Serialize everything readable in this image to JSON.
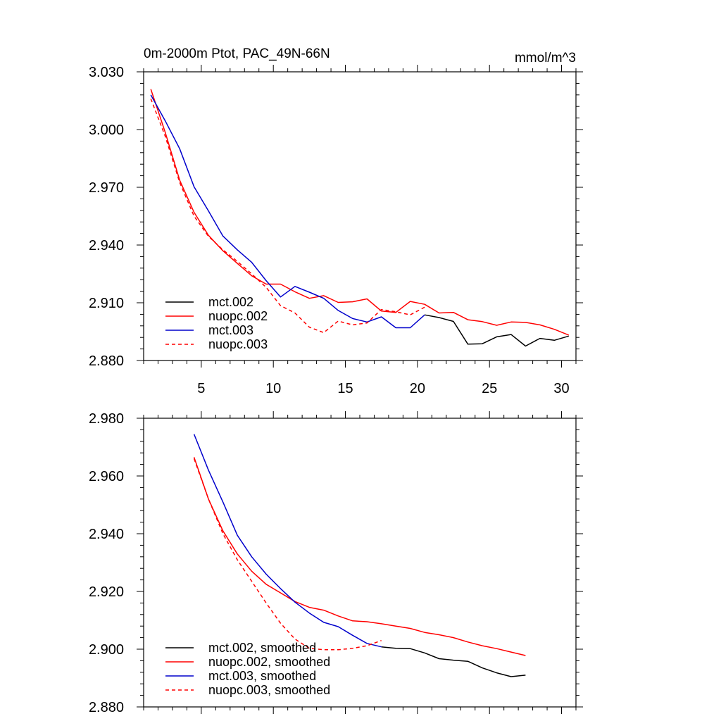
{
  "chart_data": [
    {
      "type": "line",
      "title": "0m-2000m Ptot, PAC_49N-66N",
      "units": "mmol/m^3",
      "xlim": [
        1,
        31
      ],
      "ylim": [
        2.88,
        3.03
      ],
      "xticks": [
        5,
        10,
        15,
        20,
        25,
        30
      ],
      "xtick_labels": [
        "5",
        "10",
        "15",
        "20",
        "25",
        "30"
      ],
      "yticks": [
        2.88,
        2.91,
        2.94,
        2.97,
        3.0,
        3.03
      ],
      "ytick_labels": [
        "2.880",
        "2.910",
        "2.940",
        "2.970",
        "3.000",
        "3.030"
      ],
      "legend_position": "bottom-left",
      "series": [
        {
          "name": "mct.002",
          "color": "#000000",
          "dash": "solid",
          "x": [
            20.5,
            21.5,
            22.5,
            23.5,
            24.5,
            25.5,
            26.5,
            27.5,
            28.5,
            29.5,
            30.5
          ],
          "y": [
            2.9037,
            2.9023,
            2.9003,
            2.8885,
            2.8887,
            2.8923,
            2.8935,
            2.8875,
            2.8915,
            2.8905,
            2.8927
          ]
        },
        {
          "name": "nuopc.002",
          "color": "#ff0000",
          "dash": "solid",
          "x": [
            1.5,
            2.5,
            3.5,
            4.5,
            5.5,
            6.5,
            7.5,
            8.5,
            9.5,
            10.5,
            11.5,
            12.5,
            13.5,
            14.5,
            15.5,
            16.5,
            17.5,
            18.5,
            19.5,
            20.5,
            21.5,
            22.5,
            23.5,
            24.5,
            25.5,
            26.5,
            27.5,
            28.5,
            29.5,
            30.5
          ],
          "y": [
            3.021,
            2.9985,
            2.9737,
            2.957,
            2.945,
            2.937,
            2.9305,
            2.924,
            2.9197,
            2.9197,
            2.9157,
            2.9123,
            2.9137,
            2.9102,
            2.9105,
            2.912,
            2.9057,
            2.905,
            2.9107,
            2.9092,
            2.9047,
            2.905,
            2.9012,
            2.9002,
            2.8983,
            2.9,
            2.8998,
            2.8985,
            2.8962,
            2.8932
          ]
        },
        {
          "name": "mct.003",
          "color": "#0000cc",
          "dash": "solid",
          "x": [
            1.5,
            2.5,
            3.5,
            4.5,
            5.5,
            6.5,
            7.5,
            8.5,
            9.5,
            10.5,
            11.5,
            12.5,
            13.5,
            14.5,
            15.5,
            16.5,
            17.5,
            18.5,
            19.5,
            20.5
          ],
          "y": [
            3.018,
            3.0045,
            2.99,
            2.9703,
            2.9577,
            2.9447,
            2.9375,
            2.931,
            2.9215,
            2.913,
            2.9185,
            2.9155,
            2.9123,
            2.906,
            2.9018,
            2.9,
            2.9027,
            2.897,
            2.897,
            2.9037
          ]
        },
        {
          "name": "nuopc.003",
          "color": "#ff0000",
          "dash": "dashed",
          "x": [
            1.5,
            2.5,
            3.5,
            4.5,
            5.5,
            6.5,
            7.5,
            8.5,
            9.5,
            10.5,
            11.5,
            12.5,
            13.5,
            14.5,
            15.5,
            16.5,
            17.5,
            18.5,
            19.5,
            20.5
          ],
          "y": [
            3.016,
            2.9965,
            2.9725,
            2.955,
            2.9445,
            2.9375,
            2.9315,
            2.925,
            2.918,
            2.9085,
            2.9047,
            2.8973,
            2.8945,
            2.9005,
            2.8985,
            2.8995,
            2.9065,
            2.9053,
            2.9037,
            2.9077
          ]
        }
      ]
    },
    {
      "type": "line",
      "xlim": [
        1,
        31
      ],
      "ylim": [
        2.88,
        2.98
      ],
      "xticks": [
        5,
        10,
        15,
        20,
        25,
        30
      ],
      "yticks": [
        2.88,
        2.9,
        2.92,
        2.94,
        2.96,
        2.98
      ],
      "ytick_labels": [
        "2.880",
        "2.900",
        "2.920",
        "2.940",
        "2.960",
        "2.980"
      ],
      "legend_position": "bottom-left",
      "series": [
        {
          "name": "mct.002, smoothed",
          "color": "#000000",
          "dash": "solid",
          "x": [
            17.5,
            18.5,
            19.5,
            20.5,
            21.5,
            22.5,
            23.5,
            24.5,
            25.5,
            26.5,
            27.5
          ],
          "y": [
            2.9008,
            2.9003,
            2.9002,
            2.8987,
            2.8967,
            2.8962,
            2.8958,
            2.8935,
            2.8918,
            2.8905,
            2.891
          ]
        },
        {
          "name": "nuopc.002, smoothed",
          "color": "#ff0000",
          "dash": "solid",
          "x": [
            4.5,
            5.5,
            6.5,
            7.5,
            8.5,
            9.5,
            10.5,
            11.5,
            12.5,
            13.5,
            14.5,
            15.5,
            16.5,
            17.5,
            18.5,
            19.5,
            20.5,
            21.5,
            22.5,
            23.5,
            24.5,
            25.5,
            26.5,
            27.5
          ],
          "y": [
            2.9665,
            2.952,
            2.941,
            2.933,
            2.927,
            2.9225,
            2.9195,
            2.9165,
            2.9145,
            2.9135,
            2.9115,
            2.9098,
            2.9095,
            2.9088,
            2.908,
            2.9072,
            2.9058,
            2.905,
            2.904,
            2.9025,
            2.9012,
            2.9002,
            2.899,
            2.8978
          ]
        },
        {
          "name": "mct.003, smoothed",
          "color": "#0000cc",
          "dash": "solid",
          "x": [
            4.5,
            5.5,
            6.5,
            7.5,
            8.5,
            9.5,
            10.5,
            11.5,
            12.5,
            13.5,
            14.5,
            15.5,
            16.5,
            17.5
          ],
          "y": [
            2.9745,
            2.962,
            2.951,
            2.9395,
            2.932,
            2.926,
            2.921,
            2.9163,
            2.9125,
            2.9093,
            2.9078,
            2.9048,
            2.902,
            2.9008
          ]
        },
        {
          "name": "nuopc.003, smoothed",
          "color": "#ff0000",
          "dash": "dashed",
          "x": [
            4.5,
            5.5,
            6.5,
            7.5,
            8.5,
            9.5,
            10.5,
            11.5,
            12.5,
            13.5,
            14.5,
            15.5,
            16.5,
            17.5
          ],
          "y": [
            2.966,
            2.952,
            2.94,
            2.931,
            2.9235,
            2.916,
            2.909,
            2.9035,
            2.9003,
            2.8998,
            2.8998,
            2.9003,
            2.9012,
            2.903
          ]
        }
      ]
    }
  ]
}
